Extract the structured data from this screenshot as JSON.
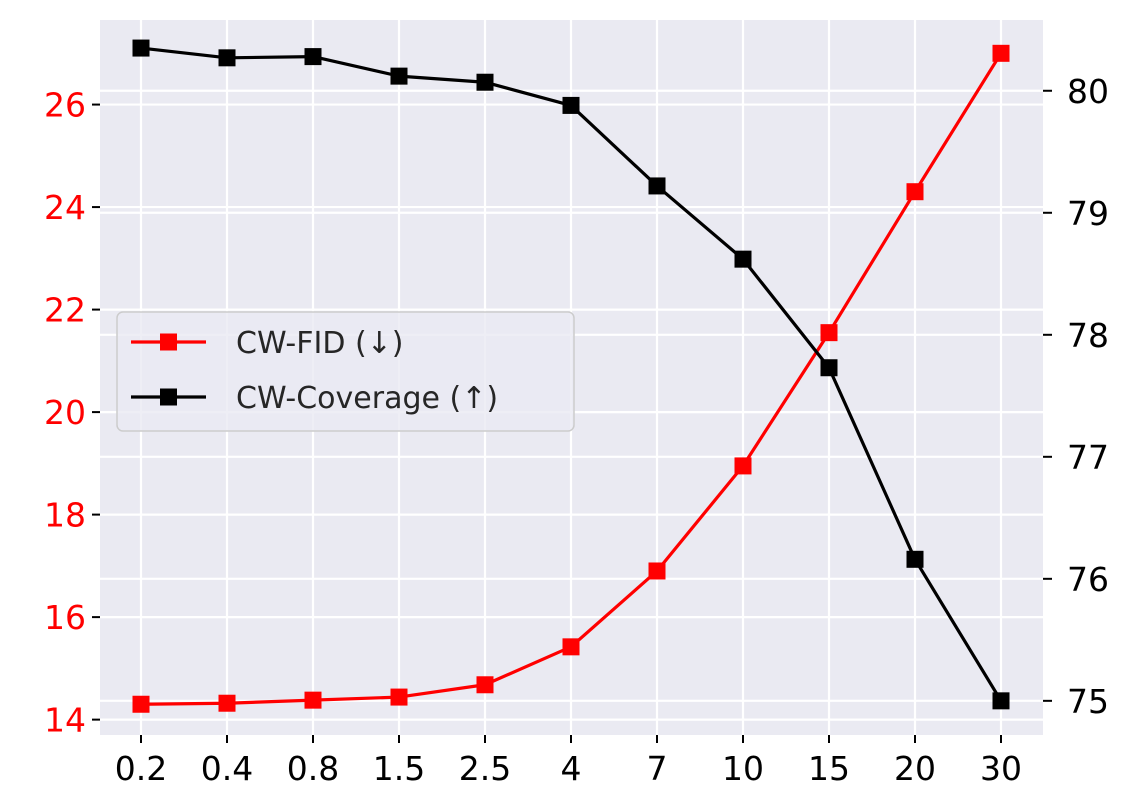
{
  "chart_data": {
    "type": "line",
    "categories": [
      "0.2",
      "0.4",
      "0.8",
      "1.5",
      "2.5",
      "4",
      "7",
      "10",
      "15",
      "20",
      "30"
    ],
    "series": [
      {
        "name": "CW-FID (↓)",
        "axis": "left",
        "color": "#ff0000",
        "marker": "square",
        "values": [
          14.3,
          14.32,
          14.38,
          14.44,
          14.68,
          15.42,
          16.9,
          18.95,
          21.55,
          24.3,
          27.0
        ]
      },
      {
        "name": "CW-Coverage (↑)",
        "axis": "right",
        "color": "#000000",
        "marker": "square",
        "values": [
          80.35,
          80.27,
          80.28,
          80.12,
          80.07,
          79.88,
          79.22,
          78.62,
          77.73,
          76.16,
          75.0
        ]
      }
    ],
    "y_left": {
      "ticks": [
        14,
        16,
        18,
        20,
        22,
        24,
        26
      ],
      "ylim": [
        13.7,
        27.65
      ],
      "color": "#ff0000"
    },
    "y_right": {
      "ticks": [
        75,
        76,
        77,
        78,
        79,
        80
      ],
      "ylim": [
        74.72,
        80.58
      ],
      "color": "#000000"
    },
    "grid": true,
    "background": "#eaeaf2",
    "legend_position": "center-left"
  }
}
